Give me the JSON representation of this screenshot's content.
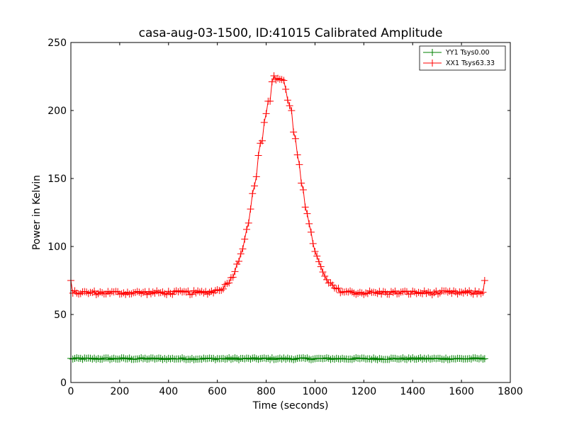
{
  "chart_data": {
    "type": "line",
    "title": "casa-aug-03-1500, ID:41015 Calibrated Amplitude",
    "xlabel": "Time (seconds)",
    "ylabel": "Power in Kelvin",
    "xlim": [
      0,
      1800
    ],
    "ylim": [
      0,
      250
    ],
    "x_ticks": [
      0,
      200,
      400,
      600,
      800,
      1000,
      1200,
      1400,
      1600,
      1800
    ],
    "y_ticks": [
      0,
      50,
      100,
      150,
      200,
      250
    ],
    "grid": false,
    "legend_position": "top-right",
    "sampling": {
      "x_start": 0,
      "x_end": 1695,
      "step": 8
    },
    "series": [
      {
        "name": "YY1 Tsys0.00",
        "color": "#008000",
        "marker": "+",
        "baseline": 17.5,
        "noise": 0.7,
        "last_point": [
          1695,
          17.5
        ]
      },
      {
        "name": "XX1 Tsys63.33",
        "color": "#ff0000",
        "marker": "+",
        "baseline": 66,
        "noise": 1.5,
        "first_point": [
          0,
          75
        ],
        "last_point": [
          1695,
          75
        ],
        "peak": {
          "x": 850,
          "y": 230,
          "width": 118
        }
      }
    ]
  }
}
